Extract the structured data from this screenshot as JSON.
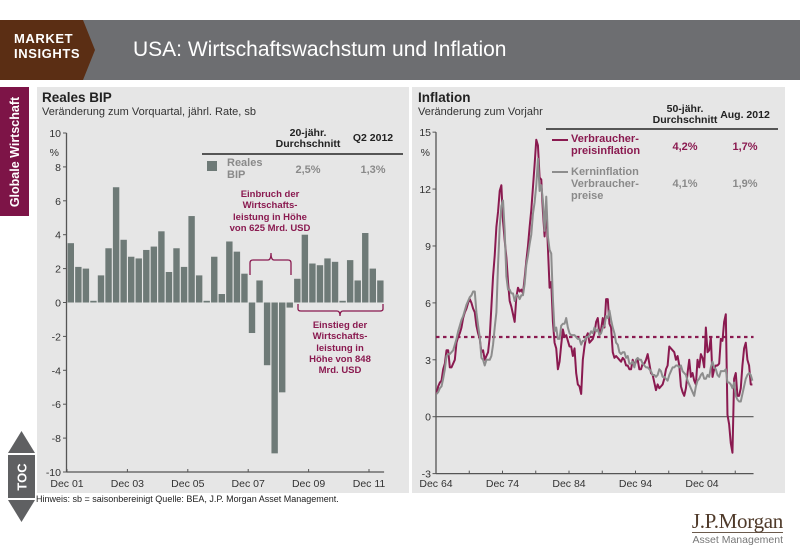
{
  "header": {
    "brand_line1": "MARKET",
    "brand_line2": "INSIGHTS",
    "title": "USA: Wirtschaftswachstum und Inflation"
  },
  "sidebar": {
    "section_tab": "Globale Wirtschaft"
  },
  "toc": {
    "label": "TOC",
    "up_icon": "triangle-up",
    "down_icon": "triangle-down"
  },
  "footnote": "Hinweis: sb = saisonbereinigt Quelle: BEA, J.P. Morgan Asset Management.",
  "logo": {
    "name": "J.P.Morgan",
    "sub": "Asset Management"
  },
  "colors": {
    "header_gray": "#6d6e71",
    "brand_brown": "#5b2e14",
    "section_maroon": "#7d1447",
    "panel_bg": "#e6e6e6",
    "gdp_bar": "#6e7a77",
    "cpi_line": "#8a1a50",
    "core_line": "#8d8d8d",
    "axis": "#555555"
  },
  "gdp_panel": {
    "title": "Reales BIP",
    "subtitle": "Veränderung zum Vorquartal, jährl. Rate, sb",
    "unit": "%",
    "table": {
      "col_avg_line1": "20-jähr.",
      "col_avg_line2": "Durchschnitt",
      "col_current": "Q2 2012",
      "rows": [
        {
          "label_line1": "Reales",
          "label_line2": "BIP",
          "avg": "2,5%",
          "current": "1,3%"
        }
      ]
    },
    "annotations": [
      {
        "lines": [
          "Einbruch der",
          "Wirtschafts-",
          "leistung in Höhe",
          "von 625 Mrd. USD"
        ]
      },
      {
        "lines": [
          "Einstieg der",
          "Wirtschafts-",
          "leistung in",
          "Höhe von 848",
          "Mrd. USD"
        ]
      }
    ]
  },
  "inflation_panel": {
    "title": "Inflation",
    "subtitle": "Veränderung zum Vorjahr",
    "unit": "%",
    "table": {
      "col_avg_line1": "50-jähr.",
      "col_avg_line2": "Durchschnitt",
      "col_current": "Aug. 2012",
      "rows": [
        {
          "label_lines": [
            "Verbraucher-",
            "preisinflation"
          ],
          "avg": "4,2%",
          "current": "1,7%"
        },
        {
          "label_lines": [
            "Kerninflation",
            "Verbraucher-",
            "preise"
          ],
          "avg": "4,1%",
          "current": "1,9%"
        }
      ]
    }
  },
  "chart_data": [
    {
      "type": "bar",
      "title": "Reales BIP",
      "subtitle": "Veränderung zum Vorquartal, jährl. Rate, sb",
      "ylabel": "%",
      "xlabel": "",
      "ylim": [
        -10,
        10
      ],
      "yticks": [
        10,
        8,
        6,
        4,
        2,
        0,
        -2,
        -4,
        -6,
        -8,
        -10
      ],
      "grid": false,
      "legend": "top-right",
      "x_start": 2002.0,
      "x_step": 0.25,
      "xticks": [
        {
          "label": "Dec 01",
          "at": 2002.0
        },
        {
          "label": "Dec 03",
          "at": 2004.0
        },
        {
          "label": "Dec 05",
          "at": 2006.0
        },
        {
          "label": "Dec 07",
          "at": 2008.0
        },
        {
          "label": "Dec 09",
          "at": 2010.0
        },
        {
          "label": "Dec 11",
          "at": 2012.0
        }
      ],
      "categories": [
        "Q1 2002",
        "Q2 2002",
        "Q3 2002",
        "Q4 2002",
        "Q1 2003",
        "Q2 2003",
        "Q3 2003",
        "Q4 2003",
        "Q1 2004",
        "Q2 2004",
        "Q3 2004",
        "Q4 2004",
        "Q1 2005",
        "Q2 2005",
        "Q3 2005",
        "Q4 2005",
        "Q1 2006",
        "Q2 2006",
        "Q3 2006",
        "Q4 2006",
        "Q1 2007",
        "Q2 2007",
        "Q3 2007",
        "Q4 2007",
        "Q1 2008",
        "Q2 2008",
        "Q3 2008",
        "Q4 2008",
        "Q1 2009",
        "Q2 2009",
        "Q3 2009",
        "Q4 2009",
        "Q1 2010",
        "Q2 2010",
        "Q3 2010",
        "Q4 2010",
        "Q1 2011",
        "Q2 2011",
        "Q3 2011",
        "Q4 2011",
        "Q1 2012",
        "Q2 2012"
      ],
      "series": [
        {
          "name": "Reales BIP",
          "values": [
            3.5,
            2.1,
            2.0,
            0.1,
            1.6,
            3.2,
            6.8,
            3.7,
            2.7,
            2.6,
            3.1,
            3.3,
            4.2,
            1.8,
            3.2,
            2.1,
            5.1,
            1.6,
            0.1,
            2.7,
            0.5,
            3.6,
            3.0,
            1.7,
            -1.8,
            1.3,
            -3.7,
            -8.9,
            -5.3,
            -0.3,
            1.4,
            4.0,
            2.3,
            2.2,
            2.6,
            2.4,
            0.1,
            2.5,
            1.3,
            4.1,
            2.0,
            1.3
          ]
        }
      ],
      "annotations": [
        {
          "text": "Einbruch der Wirtschaftsleistung in Höhe von 625 Mrd. USD",
          "span": [
            "Q1 2008",
            "Q2 2009"
          ]
        },
        {
          "text": "Einstieg der Wirtschaftsleistung in Höhe von 848 Mrd. USD",
          "span": [
            "Q3 2009",
            "Q2 2012"
          ]
        }
      ]
    },
    {
      "type": "line",
      "title": "Inflation",
      "subtitle": "Veränderung zum Vorjahr",
      "ylabel": "%",
      "xlabel": "",
      "ylim": [
        -3,
        15
      ],
      "yticks": [
        15,
        12,
        9,
        6,
        3,
        0,
        -3
      ],
      "grid": false,
      "legend": "top-right",
      "x_range": [
        1964.92,
        2012.67
      ],
      "x_start": 1965.0,
      "x_step": 0.25,
      "xticks_minor": [
        1964.92,
        1969.92,
        1974.92,
        1979.92,
        1984.92,
        1989.92,
        1994.92,
        1999.92,
        2004.92,
        2009.92
      ],
      "xticks": [
        {
          "label": "Dec 64",
          "at": 1964.92
        },
        {
          "label": "Dec 74",
          "at": 1974.92
        },
        {
          "label": "Dec 84",
          "at": 1984.92
        },
        {
          "label": "Dec 94",
          "at": 1994.92
        },
        {
          "label": "Dec 04",
          "at": 2004.92
        }
      ],
      "reference_lines": [
        {
          "name": "50-jähr. Durchschnitt Verbraucherpreisinflation",
          "y": 4.2,
          "style": "dotted"
        },
        {
          "name": "zero",
          "y": 0,
          "style": "solid"
        }
      ],
      "series": [
        {
          "name": "Verbraucherpreisinflation",
          "values": [
            1.2,
            1.6,
            1.8,
            1.9,
            2.5,
            2.8,
            3.5,
            3.5,
            2.6,
            2.6,
            2.8,
            3.0,
            3.9,
            4.2,
            4.4,
            4.7,
            5.2,
            5.5,
            5.7,
            6.0,
            6.2,
            6.0,
            5.7,
            5.5,
            4.8,
            4.4,
            4.1,
            3.4,
            3.5,
            3.0,
            3.2,
            3.4,
            4.2,
            5.8,
            7.4,
            8.5,
            10.0,
            10.8,
            11.9,
            12.2,
            10.3,
            9.3,
            8.4,
            7.1,
            6.1,
            5.8,
            5.4,
            5.0,
            6.3,
            6.8,
            6.6,
            6.7,
            6.5,
            7.3,
            8.2,
            9.0,
            10.0,
            10.9,
            12.1,
            13.3,
            14.6,
            14.3,
            12.6,
            12.5,
            10.8,
            9.5,
            11.0,
            8.9,
            6.8,
            7.1,
            5.0,
            3.9,
            3.6,
            2.5,
            2.9,
            3.8,
            4.6,
            4.2,
            4.3,
            4.0,
            3.7,
            3.7,
            3.2,
            3.6,
            2.3,
            1.7,
            1.6,
            1.2,
            3.0,
            3.7,
            4.2,
            4.4,
            3.9,
            4.0,
            4.1,
            4.4,
            5.0,
            5.2,
            4.3,
            4.6,
            5.2,
            4.7,
            6.2,
            6.2,
            4.9,
            4.7,
            3.4,
            3.1,
            3.2,
            3.1,
            3.0,
            2.9,
            3.1,
            3.0,
            2.7,
            2.7,
            2.5,
            2.5,
            3.0,
            2.7,
            2.9,
            3.0,
            2.5,
            2.5,
            2.8,
            2.8,
            3.0,
            3.3,
            2.8,
            2.3,
            2.2,
            1.8,
            1.4,
            1.7,
            1.5,
            1.6,
            1.7,
            2.0,
            2.5,
            2.7,
            3.7,
            3.6,
            3.5,
            3.4,
            3.0,
            3.2,
            2.7,
            1.6,
            1.3,
            1.1,
            1.5,
            2.3,
            3.0,
            2.1,
            2.3,
            1.9,
            1.7,
            3.0,
            2.6,
            3.3,
            3.1,
            2.6,
            4.7,
            3.4,
            3.5,
            4.2,
            2.1,
            2.5,
            2.7,
            2.7,
            2.8,
            4.1,
            4.0,
            5.0,
            5.4,
            0.1,
            -0.4,
            -1.4,
            -1.9,
            2.0,
            2.3,
            1.1,
            1.1,
            1.5,
            2.7,
            3.6,
            3.9,
            3.0,
            2.7,
            1.7,
            1.7
          ]
        },
        {
          "name": "Kerninflation Verbraucherpreise",
          "values": [
            1.2,
            1.3,
            1.5,
            1.6,
            2.0,
            2.5,
            3.2,
            3.3,
            3.3,
            3.4,
            3.5,
            3.8,
            4.1,
            4.5,
            4.8,
            5.1,
            5.3,
            5.6,
            5.9,
            6.1,
            6.3,
            6.4,
            6.6,
            6.6,
            5.5,
            4.8,
            4.2,
            3.1,
            3.0,
            2.7,
            3.0,
            3.0,
            3.0,
            3.2,
            3.8,
            4.7,
            5.5,
            8.0,
            10.0,
            11.1,
            11.4,
            9.8,
            7.4,
            6.7,
            6.7,
            6.5,
            6.5,
            6.1,
            6.4,
            6.4,
            6.2,
            6.4,
            6.4,
            7.0,
            8.0,
            8.5,
            9.1,
            9.6,
            10.7,
            11.3,
            12.2,
            13.6,
            11.9,
            12.2,
            11.4,
            9.8,
            11.6,
            9.5,
            8.8,
            8.6,
            6.2,
            4.5,
            4.7,
            4.1,
            4.1,
            4.8,
            4.9,
            4.9,
            5.2,
            4.7,
            4.4,
            4.3,
            4.3,
            4.3,
            4.2,
            4.1,
            4.1,
            3.8,
            4.0,
            4.0,
            4.2,
            4.2,
            4.3,
            4.5,
            4.4,
            4.7,
            4.5,
            4.6,
            4.3,
            4.4,
            4.7,
            4.8,
            5.3,
            5.2,
            5.6,
            5.1,
            4.7,
            4.4,
            3.9,
            3.8,
            3.4,
            3.3,
            3.4,
            3.4,
            3.1,
            3.2,
            2.8,
            2.8,
            2.9,
            2.6,
            3.0,
            3.1,
            3.0,
            3.0,
            2.8,
            2.7,
            2.6,
            2.6,
            2.5,
            2.4,
            2.2,
            2.2,
            2.1,
            2.2,
            2.5,
            2.4,
            2.1,
            2.1,
            2.0,
            1.9,
            2.2,
            2.4,
            2.6,
            2.6,
            2.7,
            2.7,
            2.6,
            2.7,
            2.4,
            2.3,
            2.2,
            1.9,
            1.7,
            1.5,
            1.3,
            1.1,
            1.6,
            1.9,
            2.0,
            2.2,
            2.3,
            2.0,
            2.0,
            2.2,
            2.1,
            2.6,
            2.9,
            2.6,
            2.5,
            2.2,
            2.1,
            2.4,
            2.4,
            2.4,
            2.5,
            1.8,
            1.8,
            1.7,
            1.5,
            1.8,
            1.1,
            0.9,
            0.8,
            0.8,
            1.2,
            1.6,
            2.0,
            2.2,
            2.3,
            2.2,
            1.9
          ]
        }
      ]
    }
  ]
}
